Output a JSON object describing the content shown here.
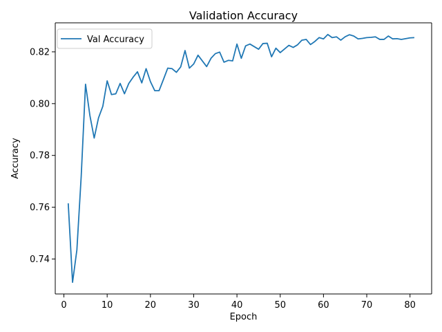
{
  "chart_data": {
    "type": "line",
    "title": "Validation Accuracy",
    "xlabel": "Epoch",
    "ylabel": "Accuracy",
    "xlim": [
      -2.0,
      85.0
    ],
    "ylim": [
      0.7265,
      0.8312
    ],
    "xticks": [
      0,
      10,
      20,
      30,
      40,
      50,
      60,
      70,
      80
    ],
    "yticks": [
      0.74,
      0.76,
      0.78,
      0.8,
      0.82
    ],
    "ytick_labels": [
      "0.74",
      "0.76",
      "0.78",
      "0.80",
      "0.82"
    ],
    "grid": false,
    "legend_position": "top-left",
    "series": [
      {
        "name": "Val Accuracy",
        "color": "#1f77b4",
        "x": [
          1,
          2,
          3,
          4,
          5,
          6,
          7,
          8,
          9,
          10,
          11,
          12,
          13,
          14,
          15,
          16,
          17,
          18,
          19,
          20,
          21,
          22,
          23,
          24,
          25,
          26,
          27,
          28,
          29,
          30,
          31,
          32,
          33,
          34,
          35,
          36,
          37,
          38,
          39,
          40,
          41,
          42,
          43,
          44,
          45,
          46,
          47,
          48,
          49,
          50,
          51,
          52,
          53,
          54,
          55,
          56,
          57,
          58,
          59,
          60,
          61,
          62,
          63,
          64,
          65,
          66,
          67,
          68,
          69,
          70,
          71,
          72,
          73,
          74,
          75,
          76,
          77,
          78,
          79,
          80,
          81
        ],
        "y": [
          0.7615,
          0.731,
          0.7435,
          0.772,
          0.8075,
          0.7955,
          0.7867,
          0.7945,
          0.799,
          0.8088,
          0.8035,
          0.8038,
          0.8078,
          0.8038,
          0.8078,
          0.8102,
          0.8123,
          0.808,
          0.8135,
          0.8085,
          0.805,
          0.805,
          0.8093,
          0.8137,
          0.8135,
          0.8121,
          0.8142,
          0.8205,
          0.8137,
          0.8153,
          0.8187,
          0.8165,
          0.8143,
          0.8175,
          0.8193,
          0.8199,
          0.816,
          0.8167,
          0.8165,
          0.823,
          0.8175,
          0.8223,
          0.823,
          0.822,
          0.821,
          0.8232,
          0.8233,
          0.8181,
          0.8214,
          0.8197,
          0.8211,
          0.8225,
          0.8217,
          0.8227,
          0.8245,
          0.8248,
          0.8228,
          0.824,
          0.8255,
          0.825,
          0.8267,
          0.8255,
          0.8258,
          0.8245,
          0.8258,
          0.8266,
          0.8261,
          0.825,
          0.8252,
          0.8255,
          0.8256,
          0.8258,
          0.8248,
          0.8248,
          0.8261,
          0.825,
          0.8251,
          0.8248,
          0.8251,
          0.8254,
          0.8255
        ]
      }
    ]
  }
}
